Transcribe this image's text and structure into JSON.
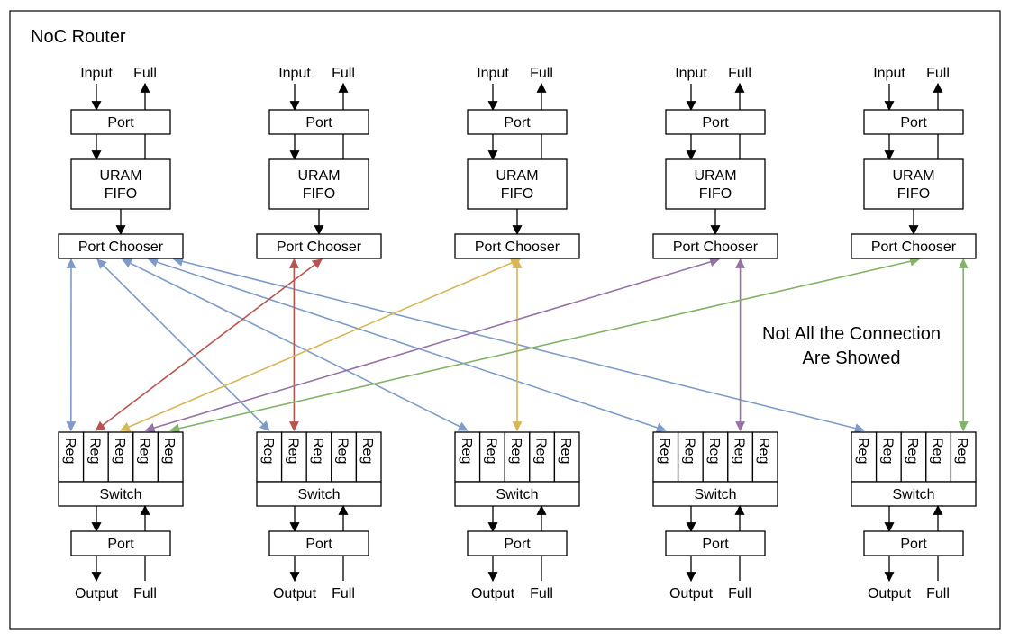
{
  "title": "NoC Router",
  "note": [
    "Not All the Connection",
    "Are Showed"
  ],
  "top_io": {
    "input": "Input",
    "full": "Full"
  },
  "bottom_io": {
    "output": "Output",
    "full": "Full"
  },
  "labels": {
    "port": "Port",
    "fifo": [
      "URAM",
      "FIFO"
    ],
    "chooser": "Port Chooser",
    "reg": "Reg",
    "switch": "Switch"
  },
  "router_count": 5,
  "regs_per_switch": 5,
  "colors": {
    "blue": "#7F9CC8",
    "red": "#B85450",
    "yellow": "#D6B656",
    "purple": "#9673A6",
    "green": "#82B366"
  },
  "connections": [
    {
      "from_chooser": 1,
      "to_switch": 1,
      "to_reg": 1,
      "color": "blue"
    },
    {
      "from_chooser": 1,
      "to_switch": 2,
      "to_reg": 1,
      "color": "blue"
    },
    {
      "from_chooser": 1,
      "to_switch": 3,
      "to_reg": 1,
      "color": "blue"
    },
    {
      "from_chooser": 1,
      "to_switch": 4,
      "to_reg": 1,
      "color": "blue"
    },
    {
      "from_chooser": 1,
      "to_switch": 5,
      "to_reg": 1,
      "color": "blue"
    },
    {
      "from_chooser": 2,
      "to_switch": 1,
      "to_reg": 2,
      "color": "red"
    },
    {
      "from_chooser": 2,
      "to_switch": 2,
      "to_reg": 2,
      "color": "red"
    },
    {
      "from_chooser": 3,
      "to_switch": 1,
      "to_reg": 3,
      "color": "yellow"
    },
    {
      "from_chooser": 3,
      "to_switch": 3,
      "to_reg": 3,
      "color": "yellow"
    },
    {
      "from_chooser": 4,
      "to_switch": 1,
      "to_reg": 4,
      "color": "purple"
    },
    {
      "from_chooser": 4,
      "to_switch": 4,
      "to_reg": 4,
      "color": "purple"
    },
    {
      "from_chooser": 5,
      "to_switch": 1,
      "to_reg": 5,
      "color": "green"
    },
    {
      "from_chooser": 5,
      "to_switch": 5,
      "to_reg": 5,
      "color": "green"
    }
  ]
}
